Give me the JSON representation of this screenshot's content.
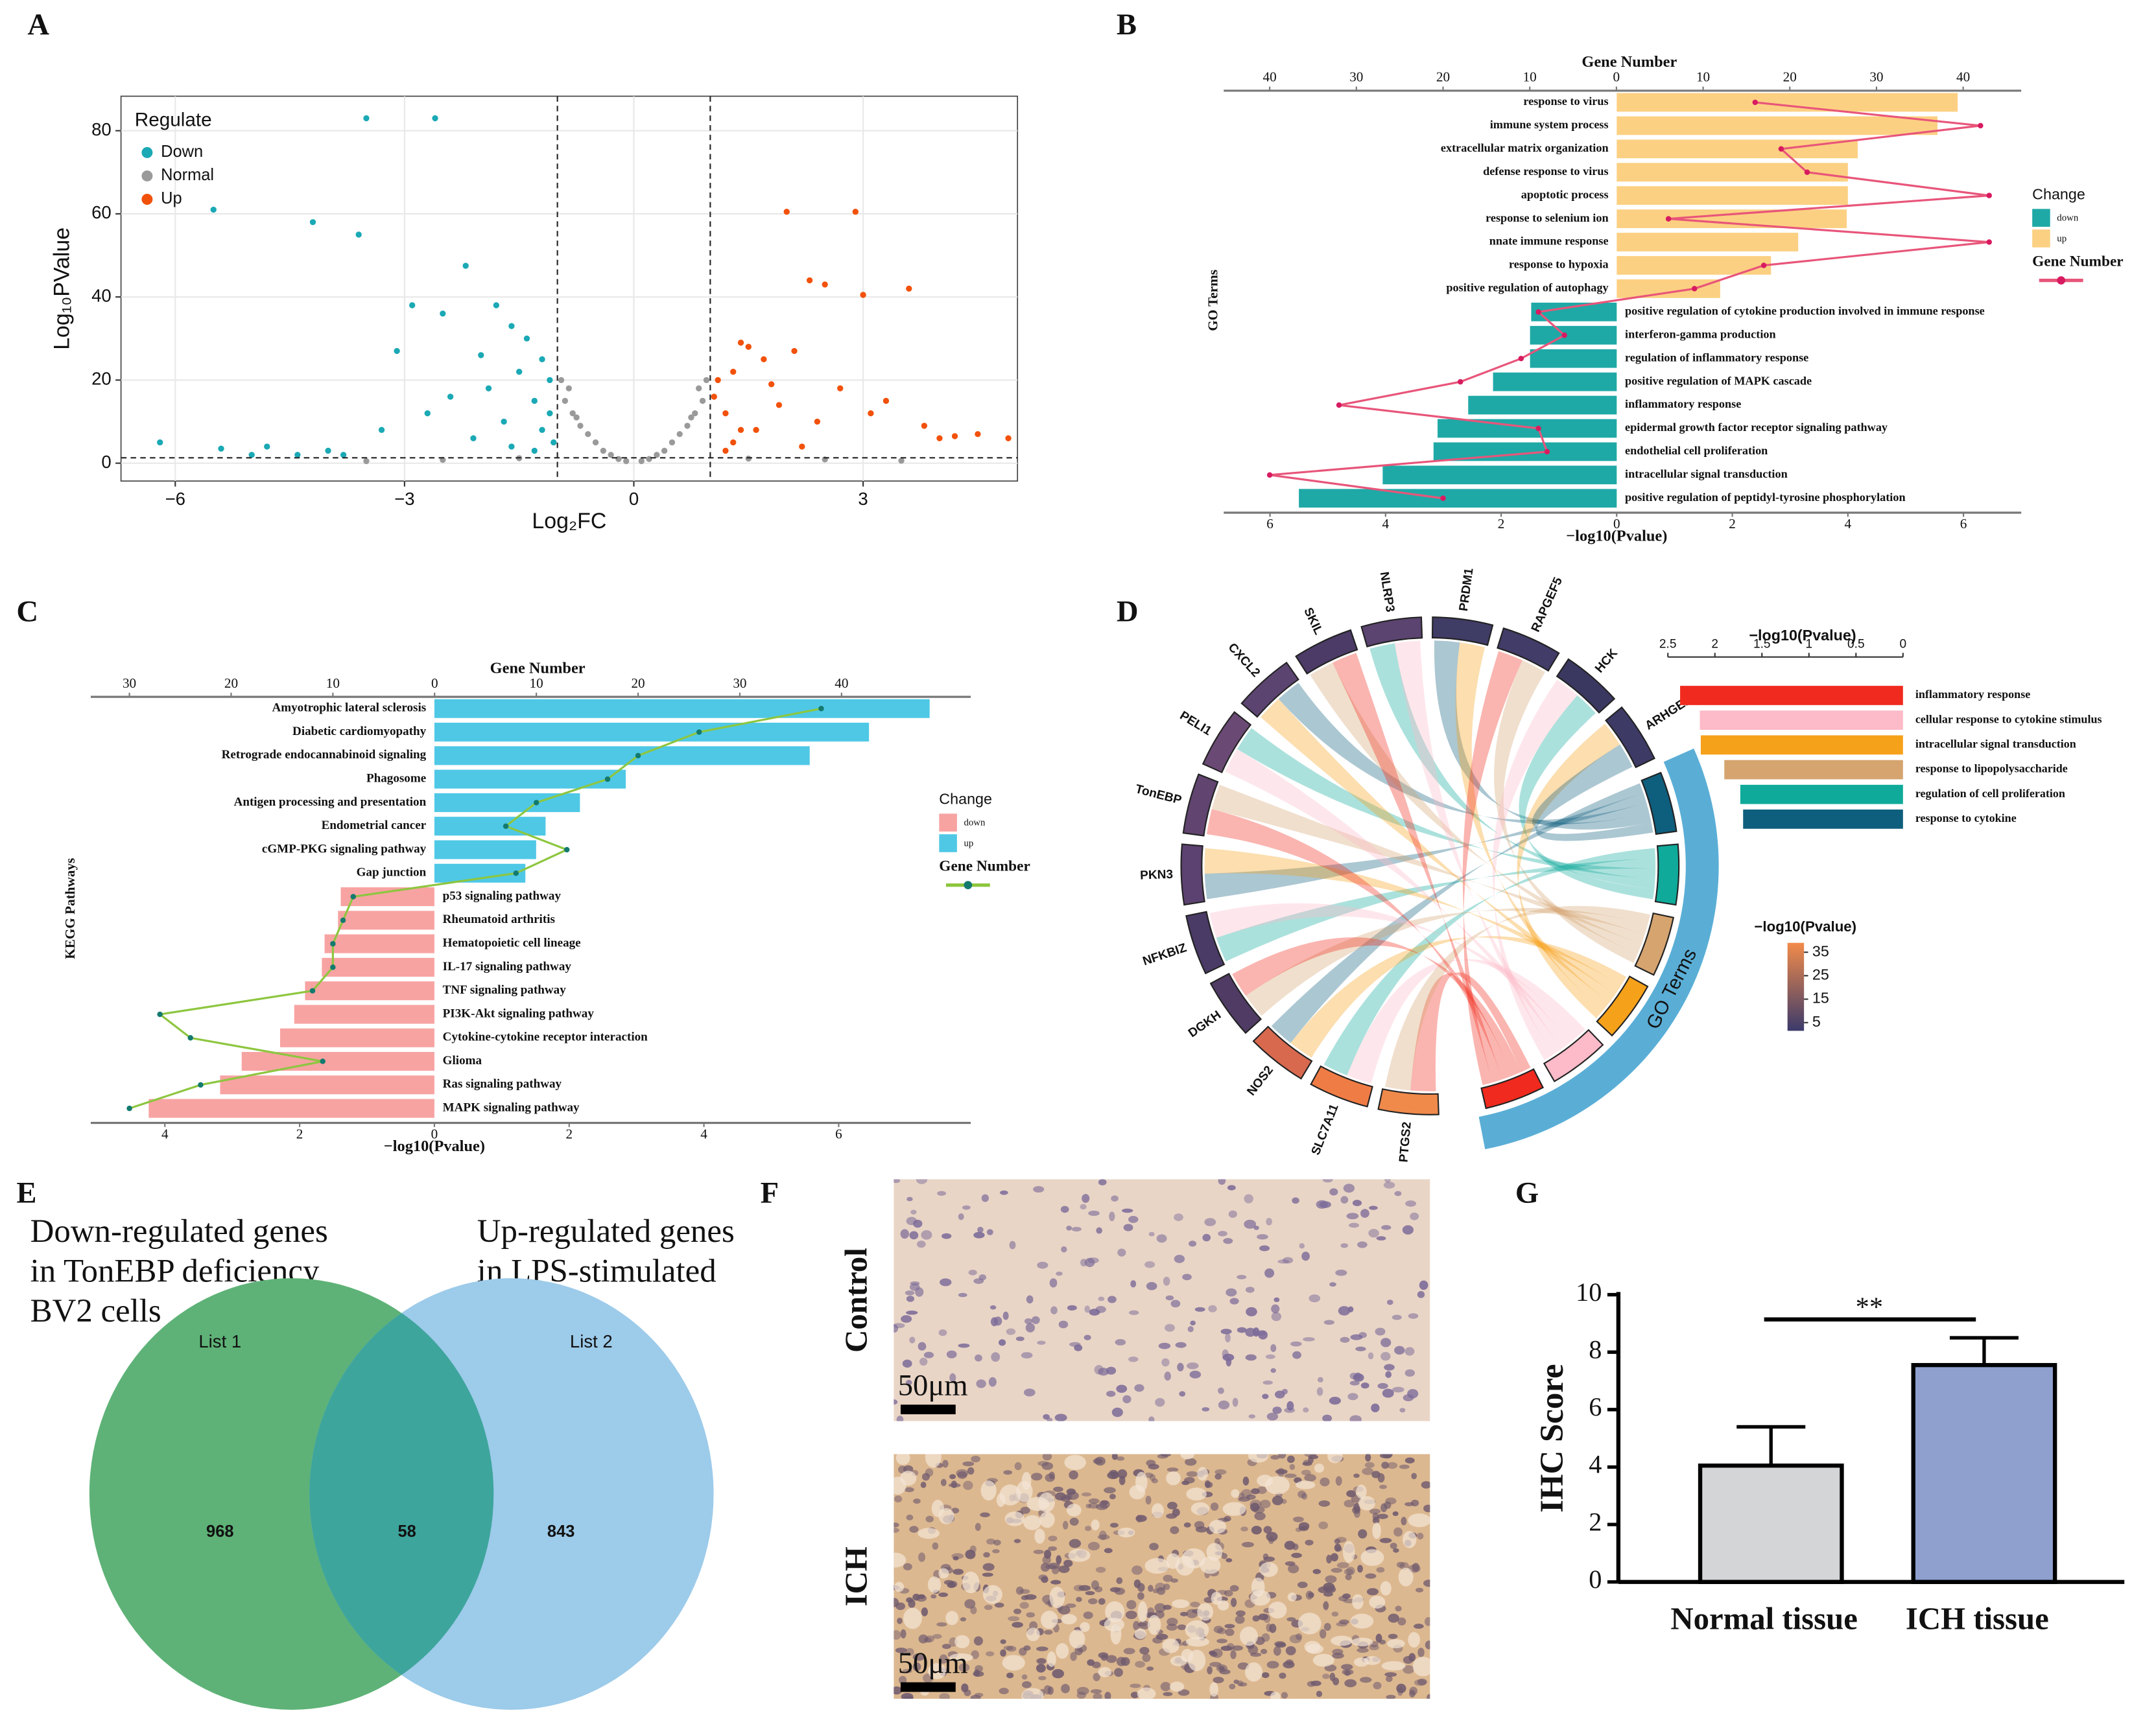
{
  "chart_data": [
    {
      "panel": "A",
      "type": "scatter",
      "xlabel": "Log₂FC",
      "ylabel": "Log₁₀PValue",
      "legend_title": "Regulate",
      "legend": "upper left",
      "xlim": [
        -6.71,
        5.02
      ],
      "ylim": [
        -4.3,
        88.3
      ],
      "xticks": [
        {
          "value": -6,
          "label": "−6"
        },
        {
          "value": -3,
          "label": "−3"
        },
        0,
        3
      ],
      "yticks": [
        0,
        20,
        40,
        60,
        80
      ],
      "grid": true,
      "vlines": [
        -1,
        1
      ],
      "hline": 1.3,
      "series": [
        {
          "name": "Down",
          "color": "#1aa9b5",
          "x": [
            -3.5,
            -2.6,
            -5.5,
            -4.2,
            -3.6,
            -6.2,
            -5.4,
            -2.2,
            -2.9,
            -2.5,
            -1.8,
            -1.6,
            -3.1,
            -2.0,
            -1.4,
            -1.2,
            -4.8,
            -4.0,
            -3.3,
            -2.7,
            -1.9,
            -1.5,
            -1.1,
            -1.3,
            -2.4,
            -1.7,
            -1.2,
            -1.05,
            -3.8,
            -2.1,
            -1.6,
            -1.3,
            -5.0,
            -4.4,
            -1.1
          ],
          "values": [
            83,
            83,
            61,
            58,
            55,
            5,
            3.5,
            47.5,
            38,
            36,
            38,
            33,
            27,
            26,
            30,
            25,
            4,
            3,
            8,
            12,
            18,
            22,
            20,
            15,
            16,
            10,
            8,
            5,
            2,
            6,
            4,
            3,
            2,
            2,
            12
          ]
        },
        {
          "name": "Normal",
          "color": "#9a9a9a",
          "x": [
            -0.9,
            -0.7,
            -0.5,
            -0.3,
            -0.1,
            0.1,
            0.3,
            0.5,
            0.7,
            0.9,
            -0.95,
            -0.8,
            -0.6,
            0.6,
            0.8,
            0.95,
            -0.4,
            0.4,
            -0.2,
            0.2,
            -1.5,
            1.5,
            -2.5,
            2.5,
            -3.5,
            3.5,
            -0.85,
            0.85,
            -0.75,
            0.75
          ],
          "values": [
            15,
            9,
            5,
            2,
            0.5,
            0.5,
            2,
            5,
            9,
            15,
            20,
            12,
            7,
            7,
            12,
            20,
            3,
            3,
            1,
            1,
            1.2,
            1.1,
            0.8,
            0.9,
            0.5,
            0.6,
            18,
            18,
            11,
            11
          ]
        },
        {
          "name": "Up",
          "color": "#f2510b",
          "x": [
            2.0,
            2.9,
            2.3,
            2.5,
            3.0,
            3.6,
            4.5,
            4.2,
            4.9,
            1.4,
            1.7,
            2.1,
            1.3,
            1.1,
            1.5,
            2.7,
            3.3,
            1.2,
            1.9,
            2.4,
            3.8,
            1.6,
            1.05,
            1.3,
            2.2,
            1.8,
            3.1,
            4.0,
            1.2,
            1.4
          ],
          "values": [
            60.5,
            60.5,
            44,
            43,
            40.5,
            42,
            7,
            6.5,
            6,
            29,
            25,
            27,
            22,
            20,
            28,
            18,
            15,
            12,
            14,
            10,
            9,
            8,
            16,
            5,
            4,
            19,
            12,
            6,
            3,
            8
          ]
        }
      ]
    },
    {
      "panel": "B",
      "type": "diverging_bar",
      "ylabel": "GO Terms",
      "xlabel": "−log10(Pvalue)",
      "x2label": "Gene Number",
      "legend_title": "Change",
      "legend_labels": [
        "down",
        "up"
      ],
      "bar_colors": [
        "#1fa9a6",
        "#fcd082"
      ],
      "line_name": "Gene Number",
      "line_color": "#e8557a",
      "dot_color": "#d81b60",
      "categories": [
        "response to virus",
        "immune system process",
        "extracellular matrix organization",
        "defense response to virus",
        "apoptotic process",
        "response to selenium ion",
        "nnate immune response",
        "response to hypoxia",
        "positive regulation of autophagy",
        "positive regulation of cytokine production involved in immune response",
        "interferon-gamma production",
        "regulation of inflammatory response",
        "positive regulation of MAPK cascade",
        "inflammatory response",
        "epidermal growth factor receptor signaling pathway",
        "endothelial cell proliferation",
        "intracellular signal transduction",
        "positive regulation of peptidyl-tyrosine phosphorylation"
      ],
      "values": [
        5.9,
        5.55,
        4.17,
        4.0,
        4.0,
        3.98,
        3.14,
        2.67,
        1.79,
        -1.48,
        -1.5,
        -1.5,
        -2.14,
        -2.57,
        -3.1,
        -3.17,
        -4.05,
        -5.5
      ],
      "gene_numbers": [
        16,
        42,
        19,
        22,
        43,
        6,
        43,
        17,
        9,
        -9,
        -6,
        -11,
        -18,
        -32,
        -9,
        -8,
        -40,
        -20
      ],
      "xlim": [
        -6.8,
        7.0
      ],
      "xticks": [
        {
          "value": -6,
          "label": "6"
        },
        {
          "value": -4,
          "label": "4"
        },
        {
          "value": -2,
          "label": "2"
        },
        0,
        2,
        4,
        6
      ],
      "x2lim": [
        -45.3,
        46.7
      ],
      "x2ticks": [
        {
          "value": -40,
          "label": "40"
        },
        {
          "value": -30,
          "label": "30"
        },
        {
          "value": -20,
          "label": "20"
        },
        {
          "value": -10,
          "label": "10"
        },
        0,
        10,
        20,
        30,
        40
      ]
    },
    {
      "panel": "C",
      "type": "diverging_bar",
      "ylabel": "KEGG Pathways",
      "xlabel": "−log10(Pvalue)",
      "x2label": "Gene Number",
      "legend_title": "Change",
      "legend_labels": [
        "down",
        "up"
      ],
      "bar_colors": [
        "#f7a3a2",
        "#4fc8e6"
      ],
      "line_name": "Gene Number",
      "line_color": "#8dc63f",
      "dot_color": "#137a6e",
      "categories": [
        "Amyotrophic lateral sclerosis",
        "Diabetic cardiomyopathy",
        "Retrograde endocannabinoid signaling",
        "Phagosome",
        "Antigen processing and presentation",
        "Endometrial cancer",
        "cGMP-PKG signaling pathway",
        "Gap junction",
        "p53 signaling pathway",
        "Rheumatoid arthritis",
        "Hematopoietic cell lineage",
        "IL-17 signaling pathway",
        "TNF signaling pathway",
        "PI3K-Akt signaling pathway",
        "Cytokine-cytokine receptor interaction",
        "Glioma",
        "Ras signaling pathway",
        "MAPK signaling pathway"
      ],
      "values": [
        7.35,
        6.45,
        5.57,
        2.84,
        2.16,
        1.65,
        1.51,
        1.35,
        -1.39,
        -1.43,
        -1.63,
        -1.67,
        -1.92,
        -2.08,
        -2.29,
        -2.86,
        -3.18,
        -4.24
      ],
      "gene_numbers": [
        38,
        26,
        20,
        17,
        10,
        7,
        13,
        8,
        -8,
        -9,
        -10,
        -10,
        -12,
        -27,
        -24,
        -11,
        -23,
        -30
      ],
      "xlim": [
        -5.1,
        7.96
      ],
      "xticks": [
        {
          "value": -4,
          "label": "4"
        },
        {
          "value": -2,
          "label": "2"
        },
        0,
        2,
        4,
        6
      ],
      "x2lim": [
        -33.8,
        52.7
      ],
      "x2ticks": [
        {
          "value": -30,
          "label": "30"
        },
        {
          "value": -20,
          "label": "20"
        },
        {
          "value": -10,
          "label": "10"
        },
        0,
        10,
        20,
        30,
        40
      ]
    },
    {
      "panel": "D",
      "type": "chord",
      "arc_label": "GO Terms",
      "xlabel": "−log10(Pvalue)",
      "clabel": "−log10(Pvalue)",
      "genes": [
        "PTGS2",
        "SLC7A11",
        "NOS2",
        "DGKH",
        "NFKBIZ",
        "PKN3",
        "TonEBP",
        "PELI1",
        "CXCL2",
        "SKIL",
        "NLRP3",
        "PRDM1",
        "RAPGEF5",
        "HCK",
        "ARHGEF3"
      ],
      "gene_colors": [
        "#f08a4b",
        "#f07c45",
        "#d8694f",
        "#4f3b63",
        "#4a3a66",
        "#5c4270",
        "#614470",
        "#6a4a74",
        "#5b4470",
        "#4b3b66",
        "#5b4470",
        "#3f3c66",
        "#423c68",
        "#3a3860",
        "#3d3a66"
      ],
      "categories": [
        "inflammatory response",
        "cellular response to cytokine stimulus",
        "intracellular signal transduction",
        "response to lipopolysaccharide",
        "regulation of cell proliferation",
        "response to cytokine"
      ],
      "values": [
        2.37,
        2.16,
        2.15,
        1.9,
        1.73,
        1.7
      ],
      "colors": [
        "#f02a1e",
        "#fdbac8",
        "#f6a11a",
        "#d5a46f",
        "#0faa9a",
        "#0e5e7d"
      ],
      "xlim": [
        2.5,
        0
      ],
      "xticks": [
        2.5,
        2,
        1.5,
        1,
        0.5,
        0
      ],
      "clim": [
        1.5,
        39
      ],
      "cticks": [
        35,
        25,
        15,
        5
      ],
      "cmap": [
        "#3b3a6b",
        "#f28b4a"
      ]
    },
    {
      "panel": "E",
      "type": "venn",
      "set_titles": [
        [
          "Down-regulated genes",
          "in TonEBP deficiency",
          "BV2 cells"
        ],
        [
          "Up-regulated genes",
          "in LPS-stimulated",
          "BV2 cells"
        ]
      ],
      "set_names": [
        "List 1",
        "List 2"
      ],
      "colors": [
        "#5eb277",
        "#9dcbea",
        "#3ea59c"
      ],
      "values": [
        968,
        58,
        843
      ]
    },
    {
      "panel": "F",
      "type": "image",
      "labels": [
        "Control",
        "ICH"
      ],
      "scale_bar_labels": [
        "50μm",
        "50μm"
      ]
    },
    {
      "panel": "G",
      "type": "bar",
      "ylabel": "IHC Score",
      "categories": [
        "Normal tissue",
        "ICH tissue"
      ],
      "values": [
        4.05,
        7.55
      ],
      "errors": [
        1.35,
        0.95
      ],
      "colors": [
        "#d3d5d7",
        "#8fa0cf"
      ],
      "ylim": [
        0,
        10
      ],
      "yticks": [
        0,
        2,
        4,
        6,
        8,
        10
      ],
      "annotation": "**"
    }
  ]
}
